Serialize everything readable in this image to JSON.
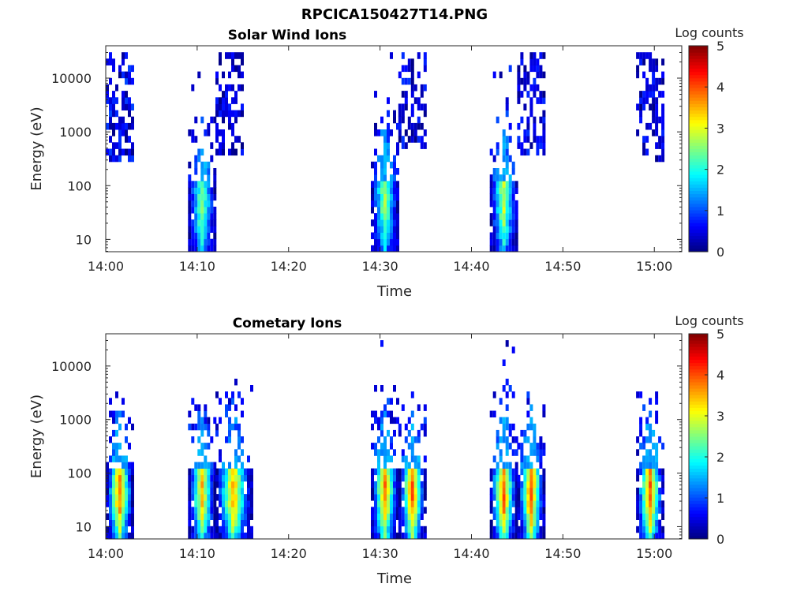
{
  "figure": {
    "title": "RPCICA150427T14.PNG"
  },
  "colorbar": {
    "label": "Log counts",
    "range": [
      0,
      5
    ],
    "ticks": [
      "0",
      "1",
      "2",
      "3",
      "4",
      "5"
    ],
    "colormap": "jet"
  },
  "chart_data": [
    {
      "type": "heatmap",
      "title": "Solar Wind Ions",
      "xlabel": "Time",
      "ylabel": "Energy (eV)",
      "y_scale": "log",
      "ylim": [
        5.9,
        40000
      ],
      "xlim": [
        "14:00",
        "15:03"
      ],
      "x_ticks": [
        "14:00",
        "14:10",
        "14:20",
        "14:30",
        "14:40",
        "14:50",
        "15:00"
      ],
      "y_ticks": [
        "10",
        "100",
        "1000",
        "10000"
      ],
      "colorbar_label": "Log counts",
      "bursts": [
        {
          "start": "14:00",
          "end": "14:03",
          "e_min": 300,
          "e_max": 25000,
          "peak_energy": 3000,
          "peak_log_counts": 0.8,
          "low_energy_core": false
        },
        {
          "start": "14:09",
          "end": "14:12",
          "e_min": 6,
          "e_max": 30000,
          "peak_energy": 40,
          "peak_log_counts": 2.3,
          "low_energy_core": true
        },
        {
          "start": "14:12",
          "end": "14:15",
          "e_min": 400,
          "e_max": 25000,
          "peak_energy": 3000,
          "peak_log_counts": 0.6,
          "low_energy_core": false
        },
        {
          "start": "14:29",
          "end": "14:32",
          "e_min": 6,
          "e_max": 35000,
          "peak_energy": 50,
          "peak_log_counts": 2.5,
          "low_energy_core": true
        },
        {
          "start": "14:32",
          "end": "14:35",
          "e_min": 500,
          "e_max": 25000,
          "peak_energy": 3000,
          "peak_log_counts": 0.7,
          "low_energy_core": false
        },
        {
          "start": "14:42",
          "end": "14:45",
          "e_min": 6,
          "e_max": 40000,
          "peak_energy": 50,
          "peak_log_counts": 2.6,
          "low_energy_core": true
        },
        {
          "start": "14:45",
          "end": "14:48",
          "e_min": 400,
          "e_max": 30000,
          "peak_energy": 3000,
          "peak_log_counts": 0.7,
          "low_energy_core": false
        },
        {
          "start": "14:58",
          "end": "15:01",
          "e_min": 300,
          "e_max": 25000,
          "peak_energy": 3000,
          "peak_log_counts": 0.6,
          "low_energy_core": false
        }
      ]
    },
    {
      "type": "heatmap",
      "title": "Cometary Ions",
      "xlabel": "Time",
      "ylabel": "Energy (eV)",
      "y_scale": "log",
      "ylim": [
        5.9,
        40000
      ],
      "xlim": [
        "14:00",
        "15:03"
      ],
      "x_ticks": [
        "14:00",
        "14:10",
        "14:20",
        "14:30",
        "14:40",
        "14:50",
        "15:00"
      ],
      "y_ticks": [
        "10",
        "100",
        "1000",
        "10000"
      ],
      "colorbar_label": "Log counts",
      "bursts": [
        {
          "start": "14:00",
          "end": "14:03",
          "e_min": 6,
          "e_max": 3000,
          "peak_energy": 40,
          "peak_log_counts": 3.6,
          "low_energy_core": true
        },
        {
          "start": "14:09",
          "end": "14:12",
          "e_min": 6,
          "e_max": 5000,
          "peak_energy": 40,
          "peak_log_counts": 3.2,
          "low_energy_core": true
        },
        {
          "start": "14:12",
          "end": "14:16",
          "e_min": 6,
          "e_max": 5000,
          "peak_energy": 40,
          "peak_log_counts": 3.3,
          "low_energy_core": true
        },
        {
          "start": "14:29",
          "end": "14:32",
          "e_min": 6,
          "e_max": 30000,
          "peak_energy": 40,
          "peak_log_counts": 3.5,
          "low_energy_core": true
        },
        {
          "start": "14:32",
          "end": "14:35",
          "e_min": 6,
          "e_max": 3000,
          "peak_energy": 40,
          "peak_log_counts": 3.7,
          "low_energy_core": true
        },
        {
          "start": "14:42",
          "end": "14:45",
          "e_min": 6,
          "e_max": 35000,
          "peak_energy": 40,
          "peak_log_counts": 3.7,
          "low_energy_core": true
        },
        {
          "start": "14:45",
          "end": "14:48",
          "e_min": 6,
          "e_max": 3000,
          "peak_energy": 40,
          "peak_log_counts": 3.8,
          "low_energy_core": true
        },
        {
          "start": "14:58",
          "end": "15:01",
          "e_min": 6,
          "e_max": 3000,
          "peak_energy": 40,
          "peak_log_counts": 3.7,
          "low_energy_core": true
        }
      ]
    }
  ]
}
